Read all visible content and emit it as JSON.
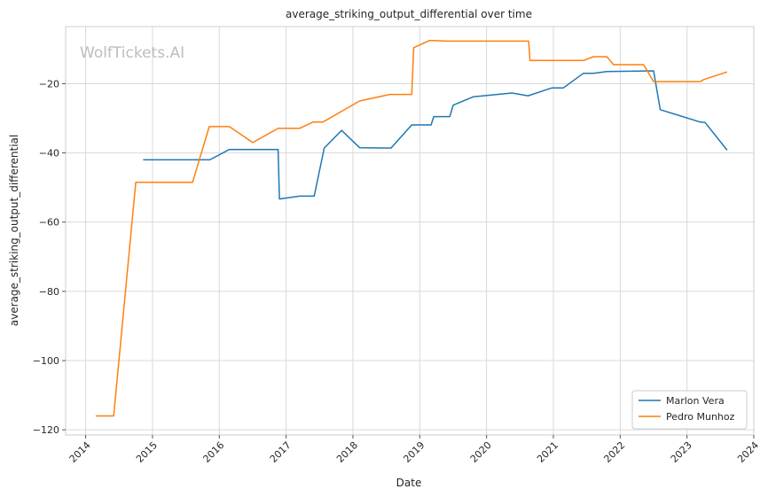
{
  "chart_data": {
    "type": "line",
    "title": "average_striking_output_differential over time",
    "xlabel": "Date",
    "ylabel": "average_striking_output_differential",
    "watermark": "WolfTickets.AI",
    "xlim": [
      2013.7,
      2024.0
    ],
    "ylim": [
      -121.5,
      -3.5
    ],
    "x_ticks": [
      2014,
      2015,
      2016,
      2017,
      2018,
      2019,
      2020,
      2021,
      2022,
      2023,
      2024
    ],
    "y_ticks": [
      -120,
      -100,
      -80,
      -60,
      -40,
      -20
    ],
    "grid": true,
    "legend_position": "lower-right",
    "series": [
      {
        "name": "Marlon Vera",
        "color": "#1f77b4",
        "points": [
          [
            2014.86,
            -42
          ],
          [
            2015.86,
            -42
          ],
          [
            2016.15,
            -39
          ],
          [
            2016.88,
            -39
          ],
          [
            2016.9,
            -53.3
          ],
          [
            2017.2,
            -52.5
          ],
          [
            2017.42,
            -52.5
          ],
          [
            2017.57,
            -38.6
          ],
          [
            2017.83,
            -33.5
          ],
          [
            2018.1,
            -38.5
          ],
          [
            2018.57,
            -38.6
          ],
          [
            2018.88,
            -31.9
          ],
          [
            2019.17,
            -31.9
          ],
          [
            2019.21,
            -29.5
          ],
          [
            2019.45,
            -29.5
          ],
          [
            2019.5,
            -26.2
          ],
          [
            2019.8,
            -23.8
          ],
          [
            2020.38,
            -22.7
          ],
          [
            2020.62,
            -23.5
          ],
          [
            2020.98,
            -21.2
          ],
          [
            2021.15,
            -21.2
          ],
          [
            2021.45,
            -17
          ],
          [
            2021.6,
            -17
          ],
          [
            2021.8,
            -16.5
          ],
          [
            2022.5,
            -16.3
          ],
          [
            2022.6,
            -27.5
          ],
          [
            2023.2,
            -31.1
          ],
          [
            2023.27,
            -31.2
          ],
          [
            2023.6,
            -39.2
          ]
        ]
      },
      {
        "name": "Pedro Munhoz",
        "color": "#ff7f0e",
        "points": [
          [
            2014.15,
            -116
          ],
          [
            2014.42,
            -116
          ],
          [
            2014.75,
            -48.5
          ],
          [
            2015.6,
            -48.5
          ],
          [
            2015.85,
            -32.4
          ],
          [
            2016.15,
            -32.4
          ],
          [
            2016.5,
            -37
          ],
          [
            2016.88,
            -32.9
          ],
          [
            2017.2,
            -32.9
          ],
          [
            2017.4,
            -31.1
          ],
          [
            2017.55,
            -31.1
          ],
          [
            2018.1,
            -25
          ],
          [
            2018.55,
            -23.1
          ],
          [
            2018.88,
            -23.1
          ],
          [
            2018.91,
            -9.6
          ],
          [
            2019.15,
            -7.5
          ],
          [
            2019.4,
            -7.7
          ],
          [
            2020.63,
            -7.7
          ],
          [
            2020.65,
            -13.3
          ],
          [
            2021.45,
            -13.3
          ],
          [
            2021.6,
            -12.2
          ],
          [
            2021.8,
            -12.2
          ],
          [
            2021.9,
            -14.5
          ],
          [
            2022.35,
            -14.5
          ],
          [
            2022.5,
            -19.4
          ],
          [
            2023.2,
            -19.4
          ],
          [
            2023.25,
            -18.8
          ],
          [
            2023.6,
            -16.6
          ]
        ]
      }
    ]
  }
}
